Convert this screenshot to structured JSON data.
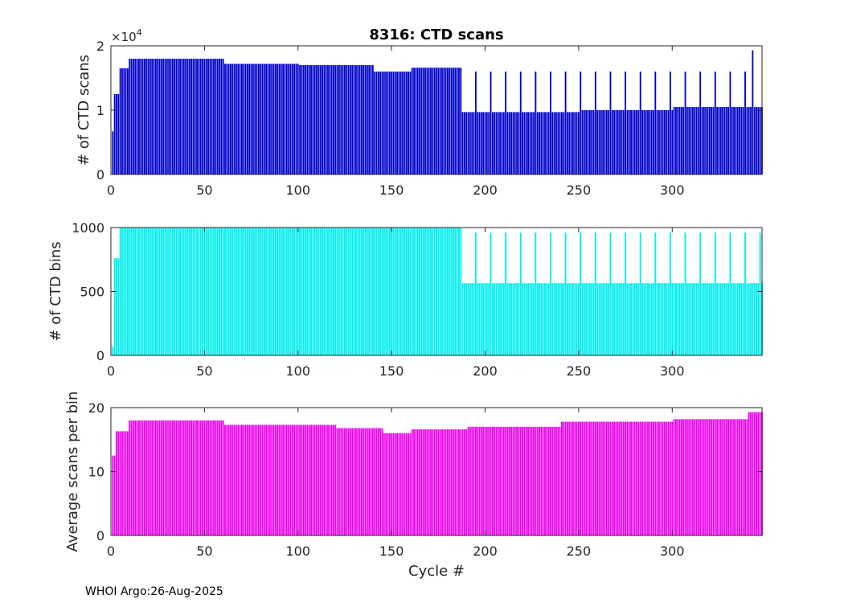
{
  "footer": "WHOI Argo:26-Aug-2025",
  "chart_data": [
    {
      "type": "bar",
      "title": "8316: CTD scans",
      "xlabel": "",
      "ylabel": "# of CTD scans",
      "xlim": [
        0,
        348
      ],
      "ylim": [
        0,
        20000
      ],
      "xticks": [
        0,
        50,
        100,
        150,
        200,
        250,
        300
      ],
      "yticks": [
        0,
        10000,
        20000
      ],
      "ytick_labels": [
        "0",
        "1",
        "2"
      ],
      "exponent_label": {
        "base": "×10",
        "power": "4"
      },
      "color": "#0000cc",
      "grid": false,
      "segments": [
        {
          "from": 1,
          "to": 1,
          "value": 6700
        },
        {
          "from": 2,
          "to": 4,
          "value": 12500
        },
        {
          "from": 5,
          "to": 9,
          "value": 16500
        },
        {
          "from": 10,
          "to": 60,
          "value": 18000
        },
        {
          "from": 61,
          "to": 100,
          "value": 17200
        },
        {
          "from": 101,
          "to": 140,
          "value": 17000
        },
        {
          "from": 141,
          "to": 160,
          "value": 16000
        },
        {
          "from": 161,
          "to": 187,
          "value": 16600
        },
        {
          "from": 188,
          "to": 250,
          "value": 9700
        },
        {
          "from": 251,
          "to": 300,
          "value": 10000
        },
        {
          "from": 301,
          "to": 348,
          "value": 10500
        }
      ],
      "spikes": [
        {
          "from": 195,
          "every": 8,
          "to": 340,
          "value": 16000
        },
        {
          "from": 343,
          "every": 1,
          "to": 343,
          "value": 19300
        }
      ]
    },
    {
      "type": "bar",
      "title": "",
      "xlabel": "",
      "ylabel": "# of CTD bins",
      "xlim": [
        0,
        348
      ],
      "ylim": [
        0,
        1000
      ],
      "xticks": [
        0,
        50,
        100,
        150,
        200,
        250,
        300
      ],
      "yticks": [
        0,
        500,
        1000
      ],
      "ytick_labels": [
        "0",
        "500",
        "1000"
      ],
      "color": "#00eeee",
      "grid": false,
      "segments": [
        {
          "from": 1,
          "to": 1,
          "value": 70
        },
        {
          "from": 2,
          "to": 4,
          "value": 760
        },
        {
          "from": 5,
          "to": 187,
          "value": 1000
        },
        {
          "from": 188,
          "to": 348,
          "value": 565
        }
      ],
      "spikes": [
        {
          "from": 195,
          "every": 8,
          "to": 348,
          "value": 960
        }
      ]
    },
    {
      "type": "bar",
      "title": "",
      "xlabel": "Cycle #",
      "ylabel": "Average scans per bin",
      "xlim": [
        0,
        348
      ],
      "ylim": [
        0,
        20
      ],
      "xticks": [
        0,
        50,
        100,
        150,
        200,
        250,
        300
      ],
      "yticks": [
        0,
        10,
        20
      ],
      "ytick_labels": [
        "0",
        "10",
        "20"
      ],
      "color": "#ee00ee",
      "grid": false,
      "segments": [
        {
          "from": 1,
          "to": 2,
          "value": 12.5
        },
        {
          "from": 3,
          "to": 9,
          "value": 16.3
        },
        {
          "from": 10,
          "to": 60,
          "value": 18.0
        },
        {
          "from": 61,
          "to": 120,
          "value": 17.3
        },
        {
          "from": 121,
          "to": 145,
          "value": 16.8
        },
        {
          "from": 146,
          "to": 160,
          "value": 16.0
        },
        {
          "from": 161,
          "to": 190,
          "value": 16.6
        },
        {
          "from": 191,
          "to": 240,
          "value": 17.0
        },
        {
          "from": 241,
          "to": 300,
          "value": 17.8
        },
        {
          "from": 301,
          "to": 340,
          "value": 18.2
        },
        {
          "from": 341,
          "to": 348,
          "value": 19.3
        }
      ],
      "spikes": []
    }
  ]
}
